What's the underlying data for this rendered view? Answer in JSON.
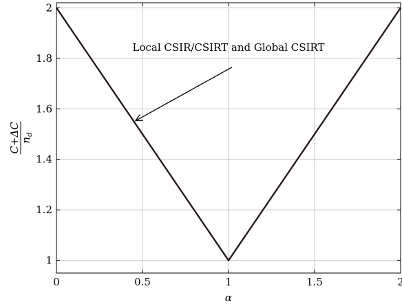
{
  "chart_data": {
    "type": "line",
    "title": "",
    "xlabel": "α",
    "ylabel": "(C+ΔC)/n_d",
    "ylabel_parts": {
      "numerator": "C+ΔC",
      "denominator": "n",
      "denominator_sub": "d"
    },
    "xlim": [
      0,
      2
    ],
    "ylim": [
      0.95,
      2.02
    ],
    "xticks": [
      0,
      0.5,
      1,
      1.5,
      2
    ],
    "xtick_labels": [
      "0",
      "0.5",
      "1",
      "1.5",
      "2"
    ],
    "yticks": [
      1,
      1.2,
      1.4,
      1.6,
      1.8,
      2
    ],
    "ytick_labels": [
      "1",
      "1.2",
      "1.4",
      "1.6",
      "1.8",
      "2"
    ],
    "grid": true,
    "series": [
      {
        "x": [
          0,
          1,
          2
        ],
        "y": [
          2,
          1,
          2
        ],
        "color": "#1a1a1a",
        "underlay_color": "#c00000"
      }
    ],
    "annotations": [
      {
        "text": "Local CSIR/CSIRT and Global CSIRT",
        "arrow_from": [
          1.02,
          1.765
        ],
        "arrow_to": [
          0.46,
          1.553
        ],
        "text_anchor_at": [
          1.0,
          1.83
        ]
      }
    ]
  }
}
